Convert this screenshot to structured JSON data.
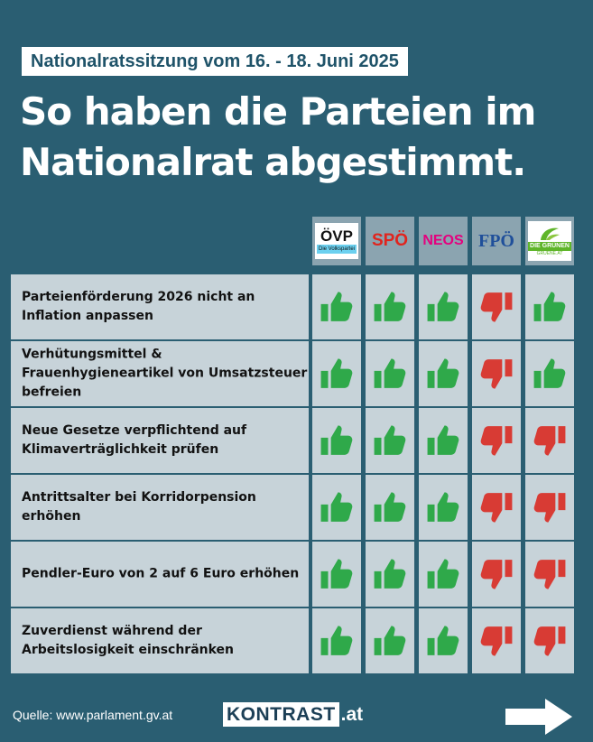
{
  "header": {
    "event_badge": "Nationalratssitzung vom 16. - 18. Juni 2025",
    "headline_line1": "So haben die Parteien im",
    "headline_line2": "Nationalrat abgestimmt."
  },
  "parties": [
    {
      "short": "ÖVP",
      "sub": "Die Volkspartei",
      "logo_bg": "#ffffff",
      "text_color": "#111111"
    },
    {
      "short": "SPÖ",
      "sub": "",
      "logo_bg": "transparent",
      "text_color": "#e1241d"
    },
    {
      "short": "NEOS",
      "sub": "",
      "logo_bg": "transparent",
      "text_color": "#e4007e"
    },
    {
      "short": "FPÖ",
      "sub": "",
      "logo_bg": "transparent",
      "text_color": "#1f4f9a"
    },
    {
      "short": "DIE GRÜNEN",
      "sub": "GRUENE.AT",
      "logo_bg": "#ffffff",
      "text_color": "#5fb529"
    }
  ],
  "vote_legend": {
    "yes": "thumbs-up",
    "no": "thumbs-down"
  },
  "colors": {
    "yes": "#2fa94a",
    "no": "#d83b34",
    "background": "#2a5e72",
    "cell": "#c7d3d9"
  },
  "motions": [
    {
      "text": "Parteienförderung 2026 nicht an Inflation anpassen",
      "votes": [
        "yes",
        "yes",
        "yes",
        "no",
        "yes"
      ]
    },
    {
      "text": "Verhütungsmittel & Frauenhygieneartikel von Umsatzsteuer befreien",
      "votes": [
        "yes",
        "yes",
        "yes",
        "no",
        "yes"
      ]
    },
    {
      "text": "Neue Gesetze verpflichtend auf Klimaverträglichkeit prüfen",
      "votes": [
        "yes",
        "yes",
        "yes",
        "no",
        "no"
      ]
    },
    {
      "text": "Antrittsalter bei Korridorpension erhöhen",
      "votes": [
        "yes",
        "yes",
        "yes",
        "no",
        "no"
      ]
    },
    {
      "text": "Pendler-Euro von 2 auf 6 Euro erhöhen",
      "votes": [
        "yes",
        "yes",
        "yes",
        "no",
        "no"
      ]
    },
    {
      "text": "Zuverdienst während der Arbeitslosigkeit einschränken",
      "votes": [
        "yes",
        "yes",
        "yes",
        "no",
        "no"
      ]
    }
  ],
  "footer": {
    "source": "Quelle: www.parlament.gv.at",
    "brand_main": "KONTRAST",
    "brand_tld": ".at",
    "next_icon": "arrow-right-icon"
  }
}
